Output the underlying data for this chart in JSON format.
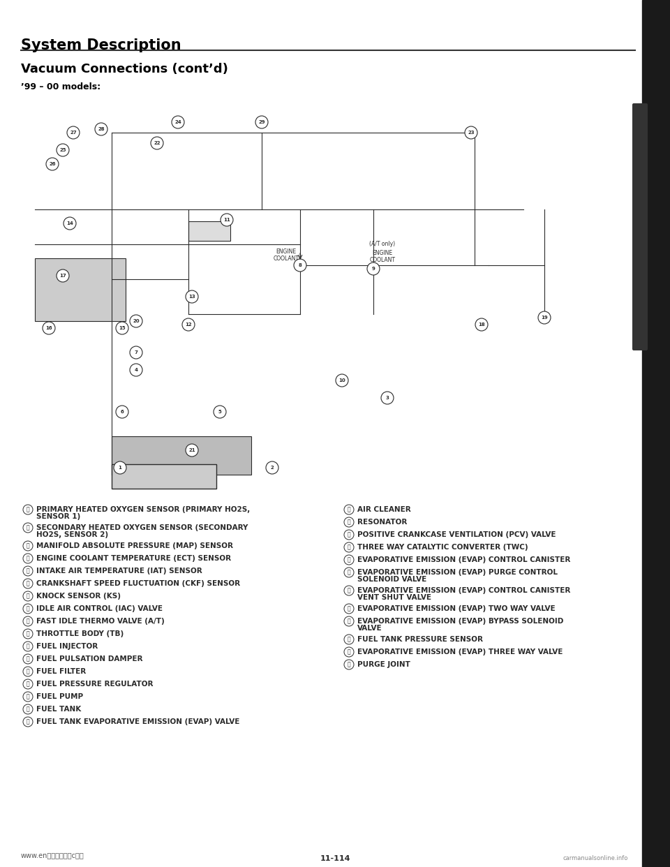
{
  "title": "System Description",
  "subtitle": "Vacuum Connections (cont’d)",
  "model_label": "’99 – 00 models:",
  "bg_color": "#ffffff",
  "text_color": "#000000",
  "title_fontsize": 15,
  "subtitle_fontsize": 13,
  "model_fontsize": 9,
  "legend_fontsize": 7.5,
  "left_legend": [
    [
      "ⓘ",
      "PRIMARY HEATED OXYGEN SENSOR (PRIMARY HO2S,\nSENSOR 1)"
    ],
    [
      "ⓙ",
      "SECONDARY HEATED OXYGEN SENSOR (SECONDARY\nHO2S, SENSOR 2)"
    ],
    [
      "ⓚ",
      "MANIFOLD ABSOLUTE PRESSURE (MAP) SENSOR"
    ],
    [
      "ⓛ",
      "ENGINE COOLANT TEMPERATURE (ECT) SENSOR"
    ],
    [
      "ⓜ",
      "INTAKE AIR TEMPERATURE (IAT) SENSOR"
    ],
    [
      "ⓝ",
      "CRANKSHAFT SPEED FLUCTUATION (CKF) SENSOR"
    ],
    [
      "ⓞ",
      "KNOCK SENSOR (KS)"
    ],
    [
      "ⓟ",
      "IDLE AIR CONTROL (IAC) VALVE"
    ],
    [
      "ⓠ",
      "FAST IDLE THERMO VALVE (A/T)"
    ],
    [
      "ⓡ",
      "THROTTLE BODY (TB)"
    ],
    [
      "ⓢ",
      "FUEL INJECTOR"
    ],
    [
      "ⓣ",
      "FUEL PULSATION DAMPER"
    ],
    [
      "ⓤ",
      "FUEL FILTER"
    ],
    [
      "ⓥ",
      "FUEL PRESSURE REGULATOR"
    ],
    [
      "ⓦ",
      "FUEL PUMP"
    ],
    [
      "ⓧ",
      "FUEL TANK"
    ],
    [
      "ⓨ",
      "FUEL TANK EVAPORATIVE EMISSION (EVAP) VALVE"
    ]
  ],
  "right_legend": [
    [
      "ⓩ",
      "AIR CLEANER"
    ],
    [
      "⑳",
      "RESONATOR"
    ],
    [
      "⑴",
      "POSITIVE CRANKCASE VENTILATION (PCV) VALVE"
    ],
    [
      "⑵",
      "THREE WAY CATALYTIC CONVERTER (TWC)"
    ],
    [
      "⑶",
      "EVAPORATIVE EMISSION (EVAP) CONTROL CANISTER"
    ],
    [
      "⑷",
      "EVAPORATIVE EMISSION (EVAP) PURGE CONTROL\nSOLENOID VALVE"
    ],
    [
      "⑸",
      "EVAPORATIVE EMISSION (EVAP) CONTROL CANISTER\nVENT SHUT VALVE"
    ],
    [
      "⑹",
      "EVAPORATIVE EMISSION (EVAP) TWO WAY VALVE"
    ],
    [
      "⑺",
      "EVAPORATIVE EMISSION (EVAP) BYPASS SOLENOID\nVALVE"
    ],
    [
      "⑻",
      "FUEL TANK PRESSURE SENSOR"
    ],
    [
      "⑼",
      "EVAPORATIVE EMISSION (EVAP) THREE WAY VALVE"
    ],
    [
      "⑽",
      "PURGE JOINT"
    ]
  ],
  "footer_left": "www.enⓘⓝⓘⓛⓤⓡcⓘⓛ",
  "footer_right": "carmanualsonline.info",
  "page_number": "11-114",
  "right_bar_color": "#1a1a1a",
  "diagram_placeholder_color": "#f0f0f0"
}
